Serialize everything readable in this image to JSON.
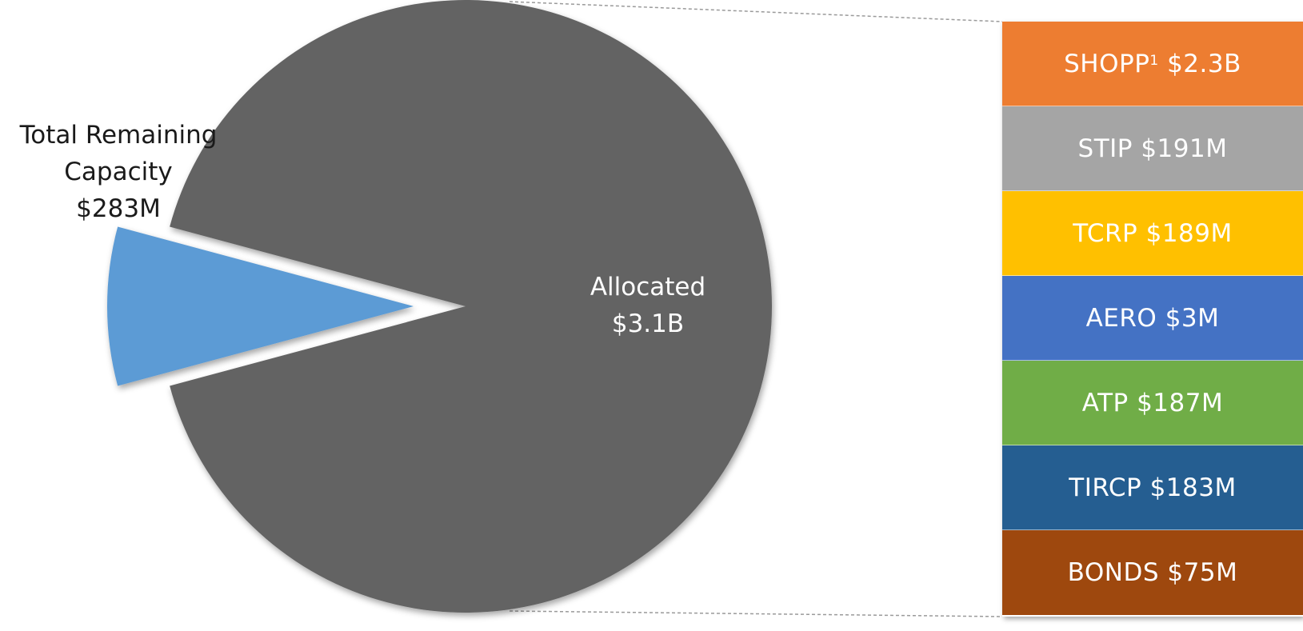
{
  "chart_data": {
    "type": "pie",
    "slices": [
      {
        "key": "allocated",
        "label": "Allocated",
        "value_label": "$3.1B",
        "value": 3100,
        "color": "#636363",
        "exploded": false
      },
      {
        "key": "remaining",
        "label": "Total Remaining Capacity",
        "value_label": "$283M",
        "value": 283,
        "color": "#5b9bd5",
        "exploded": true
      }
    ],
    "value_unit": "$M",
    "breakdown": {
      "of": "Allocated",
      "items": [
        {
          "name": "SHOPP",
          "footnote": "1",
          "amount": "$2.3B",
          "value": 2300,
          "color": "#ed7d31"
        },
        {
          "name": "STIP",
          "footnote": "",
          "amount": "$191M",
          "value": 191,
          "color": "#a5a5a5"
        },
        {
          "name": "TCRP",
          "footnote": "",
          "amount": "$189M",
          "value": 189,
          "color": "#ffc000"
        },
        {
          "name": "AERO",
          "footnote": "",
          "amount": "$3M",
          "value": 3,
          "color": "#4472c4"
        },
        {
          "name": "ATP",
          "footnote": "",
          "amount": "$187M",
          "value": 187,
          "color": "#70ad47"
        },
        {
          "name": "TIRCP",
          "footnote": "",
          "amount": "$183M",
          "value": 183,
          "color": "#255e91"
        },
        {
          "name": "BONDS",
          "footnote": "",
          "amount": "$75M",
          "value": 75,
          "color": "#9e480e"
        }
      ]
    }
  },
  "labels": {
    "remaining_line1": "Total Remaining",
    "remaining_line2": "Capacity",
    "remaining_value": "$283M",
    "allocated_line1": "Allocated",
    "allocated_value": "$3.1B"
  }
}
